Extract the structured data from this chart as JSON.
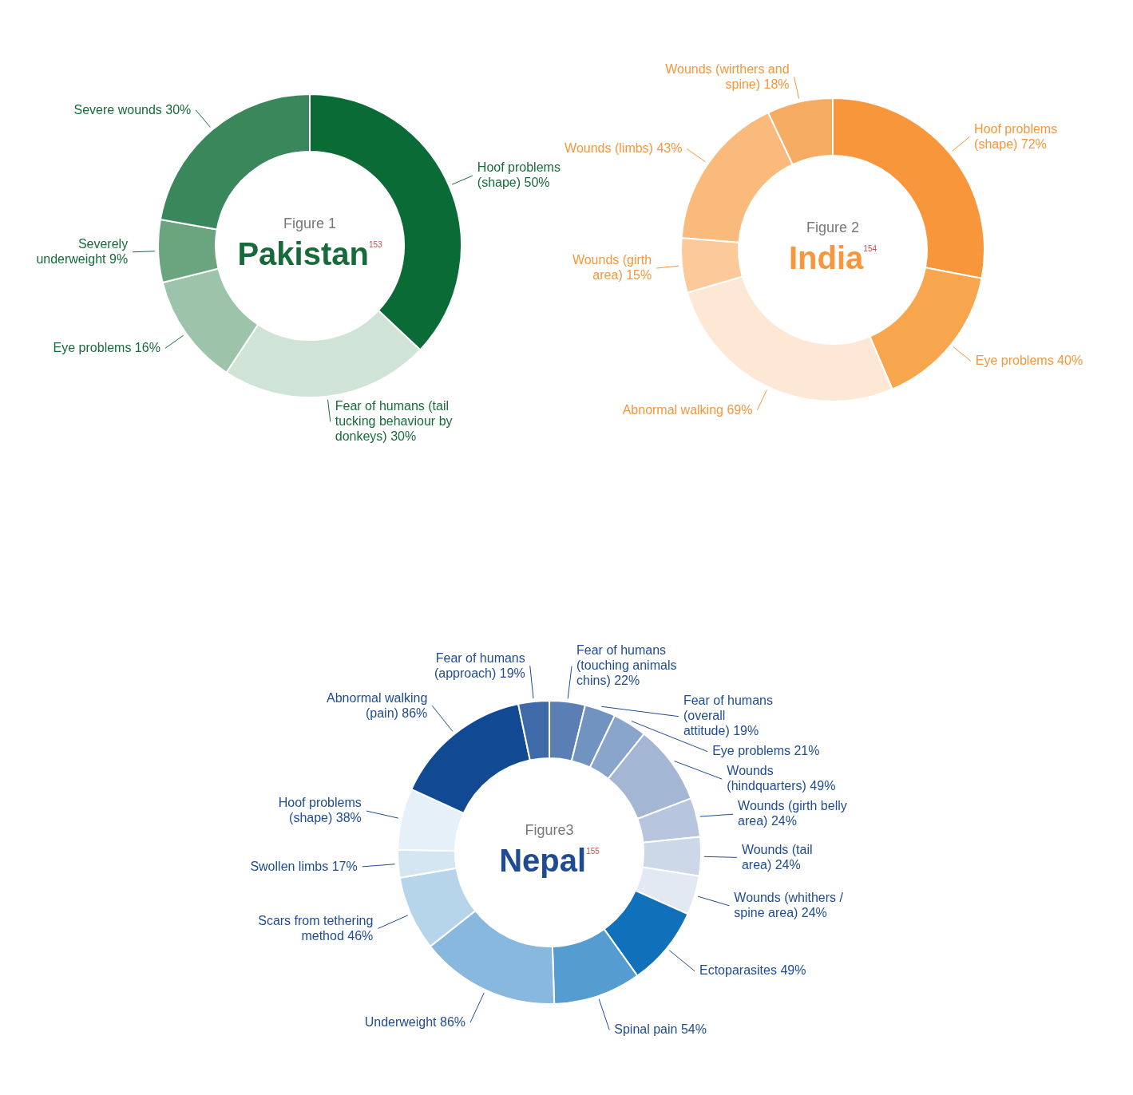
{
  "chart_data": [
    {
      "type": "donut",
      "title": "Pakistan$^{153}$",
      "subtitle": "Figure 1",
      "categories": [
        "Hoof problems (shape)",
        "Fear of humans (tail tucking behaviour by donkeys)",
        "Eye problems",
        "Severely underweight",
        "Severe wounds"
      ],
      "values": [
        50,
        30,
        16,
        9,
        30
      ],
      "value_labels": [
        "50%",
        "30%",
        "16%",
        "9%",
        "30%"
      ],
      "colors": [
        "#0a6b37",
        "#cfe3d7",
        "#9dc4ab",
        "#6aa57f",
        "#3a875c"
      ],
      "legend": false
    },
    {
      "type": "donut",
      "title": "India$^{154}$",
      "subtitle": "Figure 2",
      "categories": [
        "Hoof problems (shape)",
        "Eye problems",
        "Abnormal walking",
        "Wounds (girth area)",
        "Wounds (limbs)",
        "Wounds (wirthers and spine)"
      ],
      "values": [
        72,
        40,
        69,
        15,
        43,
        18
      ],
      "value_labels": [
        "72%",
        "40%",
        "69%",
        "15%",
        "43%",
        "18%"
      ],
      "colors": [
        "#f7963a",
        "#f7a64e",
        "#fde8d6",
        "#fbc99a",
        "#f9ba7c",
        "#f6ab62"
      ],
      "legend": false
    },
    {
      "type": "donut",
      "title": "Nepal$^{155}$",
      "subtitle": "Figure3",
      "categories": [
        "Fear of humans (touching animals chins)",
        "Fear of humans (overall attitude)",
        "Eye problems",
        "Wounds (hindquarters)",
        "Wounds (girth belly area)",
        "Wounds (tail area)",
        "Wounds (whithers / spine area)",
        "Ectoparasites",
        "Spinal pain",
        "Underweight",
        "Scars from tethering method",
        "Swollen limbs",
        "Hoof problems (shape)",
        "Abnormal walking (pain)",
        "Fear of humans (approach)"
      ],
      "values": [
        22,
        19,
        21,
        49,
        24,
        24,
        24,
        49,
        54,
        86,
        46,
        17,
        38,
        86,
        19
      ],
      "value_labels": [
        "22%",
        "19%",
        "21%",
        "49%",
        "24%",
        "24%",
        "24%",
        "49%",
        "54%",
        "86%",
        "46%",
        "17%",
        "38%",
        "86%",
        "19%"
      ],
      "colors": [
        "#5b7fb4",
        "#7193c0",
        "#8aa5cb",
        "#a3b6d4",
        "#b7c6de",
        "#ccd8e8",
        "#e2e9f3",
        "#1070b9",
        "#559cd0",
        "#88b8dd",
        "#b7d5ea",
        "#d5e6f3",
        "#e6f0f8",
        "#114a93",
        "#3f6aa8"
      ],
      "legend": false
    }
  ]
}
